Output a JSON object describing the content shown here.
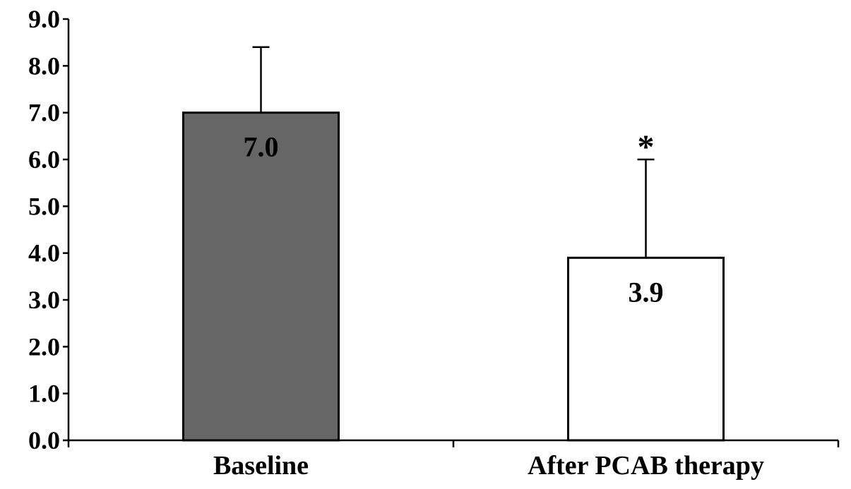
{
  "chart_data": {
    "type": "bar",
    "categories": [
      "Baseline",
      "After PCAB therapy"
    ],
    "values": [
      7.0,
      3.9
    ],
    "data_labels": [
      "7.0",
      "3.9"
    ],
    "error_upper": [
      8.4,
      6.0
    ],
    "significance": [
      "",
      "*"
    ],
    "bar_colors": [
      "#666666",
      "#ffffff"
    ],
    "ylim": [
      0,
      9
    ],
    "yticks": [
      "0.0",
      "1.0",
      "2.0",
      "3.0",
      "4.0",
      "5.0",
      "6.0",
      "7.0",
      "8.0",
      "9.0"
    ],
    "grid": false,
    "title": "",
    "xlabel": "",
    "ylabel": ""
  }
}
